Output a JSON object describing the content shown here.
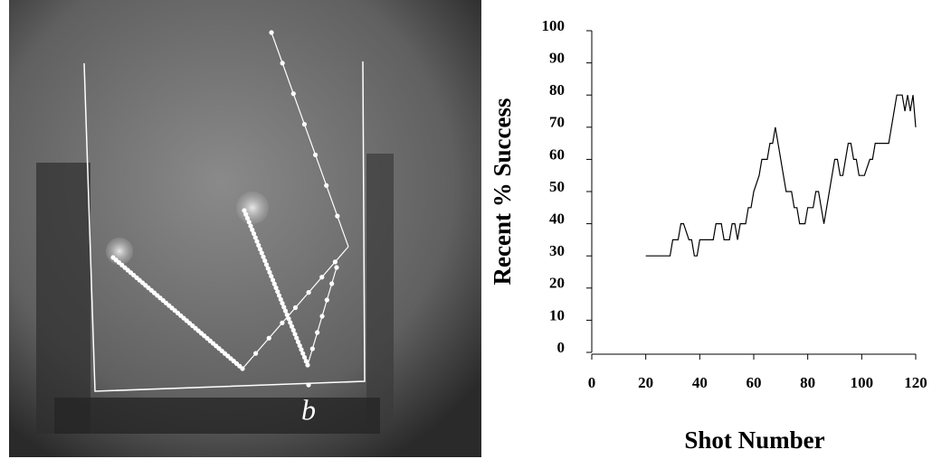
{
  "photo": {
    "label": "b"
  },
  "chart_data": {
    "type": "line",
    "x_label": "Shot Number",
    "y_label": "Recent % Success",
    "x": [
      20,
      29,
      30,
      32,
      33,
      34,
      36,
      37,
      38,
      39,
      40,
      45,
      46,
      48,
      49,
      51,
      52,
      53,
      54,
      55,
      57,
      58,
      59,
      60,
      62,
      63,
      65,
      66,
      67,
      68,
      72,
      74,
      75,
      76,
      77,
      79,
      80,
      82,
      83,
      84,
      85,
      86,
      90,
      91,
      92,
      93,
      95,
      96,
      97,
      98,
      99,
      100,
      101,
      103,
      104,
      105,
      106,
      110,
      111,
      112,
      113,
      115,
      116,
      117,
      118,
      119,
      120
    ],
    "values": [
      30,
      30,
      35,
      35,
      40,
      40,
      35,
      35,
      30,
      30,
      35,
      35,
      40,
      40,
      35,
      35,
      40,
      40,
      35,
      40,
      40,
      45,
      45,
      50,
      55,
      60,
      60,
      65,
      65,
      70,
      50,
      50,
      45,
      45,
      40,
      40,
      45,
      45,
      50,
      50,
      45,
      40,
      60,
      60,
      55,
      55,
      65,
      65,
      60,
      60,
      55,
      55,
      55,
      60,
      60,
      65,
      65,
      65,
      70,
      75,
      80,
      80,
      75,
      80,
      75,
      80,
      70
    ],
    "color": "#000000",
    "xlim": [
      0,
      120
    ],
    "xticks": [
      0,
      20,
      40,
      60,
      80,
      100,
      120
    ],
    "ylim": [
      0,
      100
    ],
    "yticks": [
      0,
      10,
      20,
      30,
      40,
      50,
      60,
      70,
      80,
      90,
      100
    ],
    "grid": false
  }
}
